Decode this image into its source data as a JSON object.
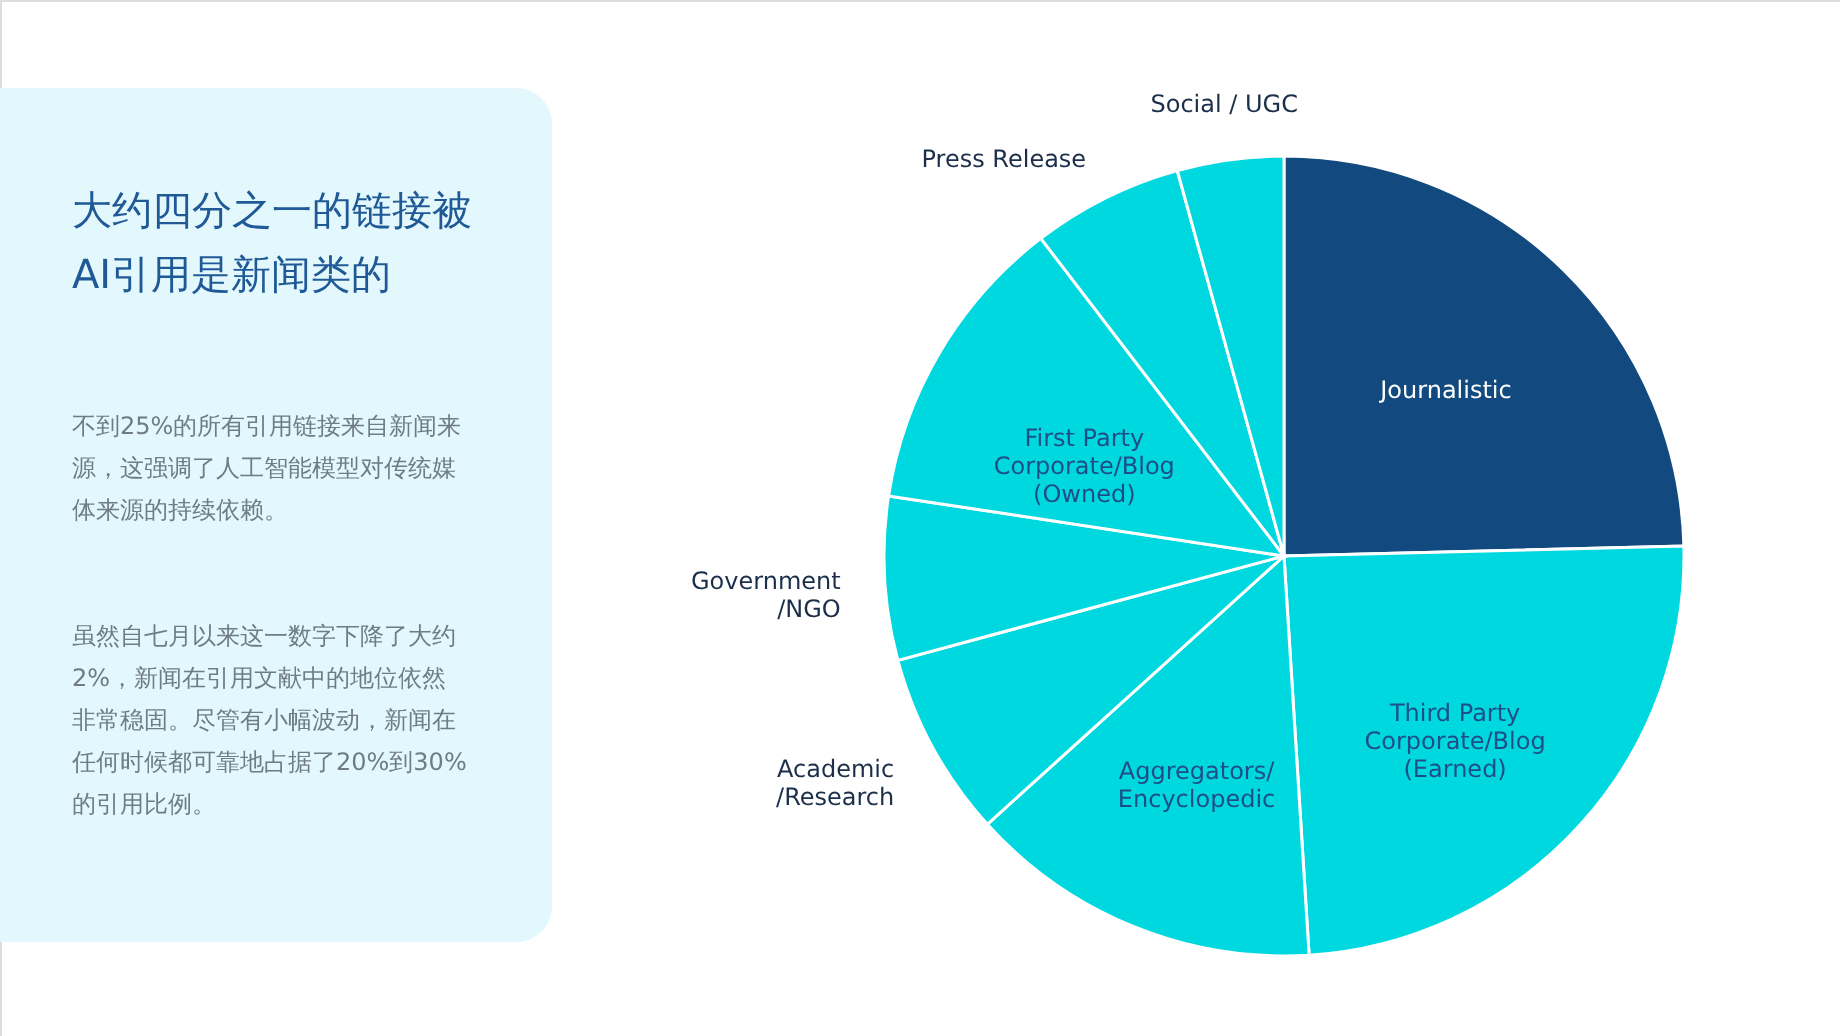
{
  "chart_data": {
    "type": "pie",
    "title": "大约四分之一的链接被AI引用是新闻类的",
    "annotations": [
      "不到25%的所有引用链接来自新闻来源，这强调了人工智能模型对传统媒体来源的持续依赖。",
      "虽然自七月以来这一数字下降了大约2%，新闻在引用文献中的地位依然非常稳固。尽管有小幅波动，新闻在任何时候都可靠地占据了20%到30%的引用比例。"
    ],
    "categories": [
      "Journalistic",
      "Third Party\nCorporate/Blog\n(Earned)",
      "Aggregators/\nEncyclopedic",
      "Academic\n/Research",
      "Government\n/NGO",
      "First Party\nCorporate/Blog\n(Owned)",
      "Press Release",
      "Social / UGC"
    ],
    "values": [
      24.6,
      24.4,
      14.3,
      7.5,
      6.6,
      12.2,
      6.1,
      4.3
    ],
    "colors": [
      "#124a80",
      "#00d8e0",
      "#00d8e0",
      "#00d8e0",
      "#00d8e0",
      "#00d8e0",
      "#00d8e0",
      "#00d8e0"
    ],
    "data_labels": false
  }
}
